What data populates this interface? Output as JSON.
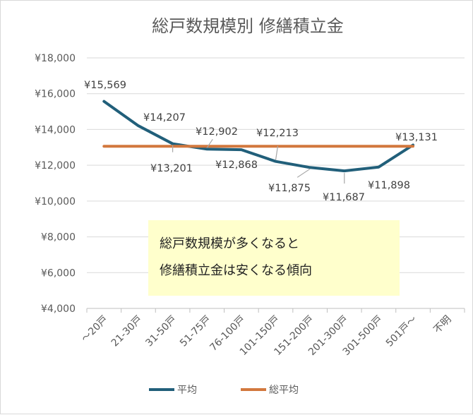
{
  "chart_data": {
    "type": "line",
    "title": "総戸数規模別 修繕積立金",
    "categories": [
      "～20戸",
      "21-30戸",
      "31-50戸",
      "51-75戸",
      "76-100戸",
      "101-150戸",
      "151-200戸",
      "201-300戸",
      "301-500戸",
      "501戸～",
      "不明"
    ],
    "series": [
      {
        "name": "平均",
        "color": "#215f7a",
        "values": [
          15569,
          14207,
          13201,
          12902,
          12868,
          12213,
          11875,
          11687,
          11898,
          13131,
          null
        ],
        "data_labels": [
          "¥15,569",
          "¥14,207",
          "¥13,201",
          "¥12,902",
          "¥12,868",
          "¥12,213",
          "¥11,875",
          "¥11,687",
          "¥11,898",
          "¥13,131"
        ]
      },
      {
        "name": "総平均",
        "color": "#d2783e",
        "values": [
          13060,
          13060,
          13060,
          13060,
          13060,
          13060,
          13060,
          13060,
          13060,
          13060,
          null
        ]
      }
    ],
    "ylim": [
      4000,
      18000
    ],
    "yticks": [
      4000,
      6000,
      8000,
      10000,
      12000,
      14000,
      16000,
      18000
    ],
    "ytick_labels": [
      "¥4,000",
      "¥6,000",
      "¥8,000",
      "¥10,000",
      "¥12,000",
      "¥14,000",
      "¥16,000",
      "¥18,000"
    ],
    "grid": true,
    "legend_position": "bottom",
    "annotation": {
      "lines": [
        "総戸数規模が多くなると",
        "修繕積立金は安くなる傾向"
      ],
      "background": "#ffffcc"
    }
  }
}
